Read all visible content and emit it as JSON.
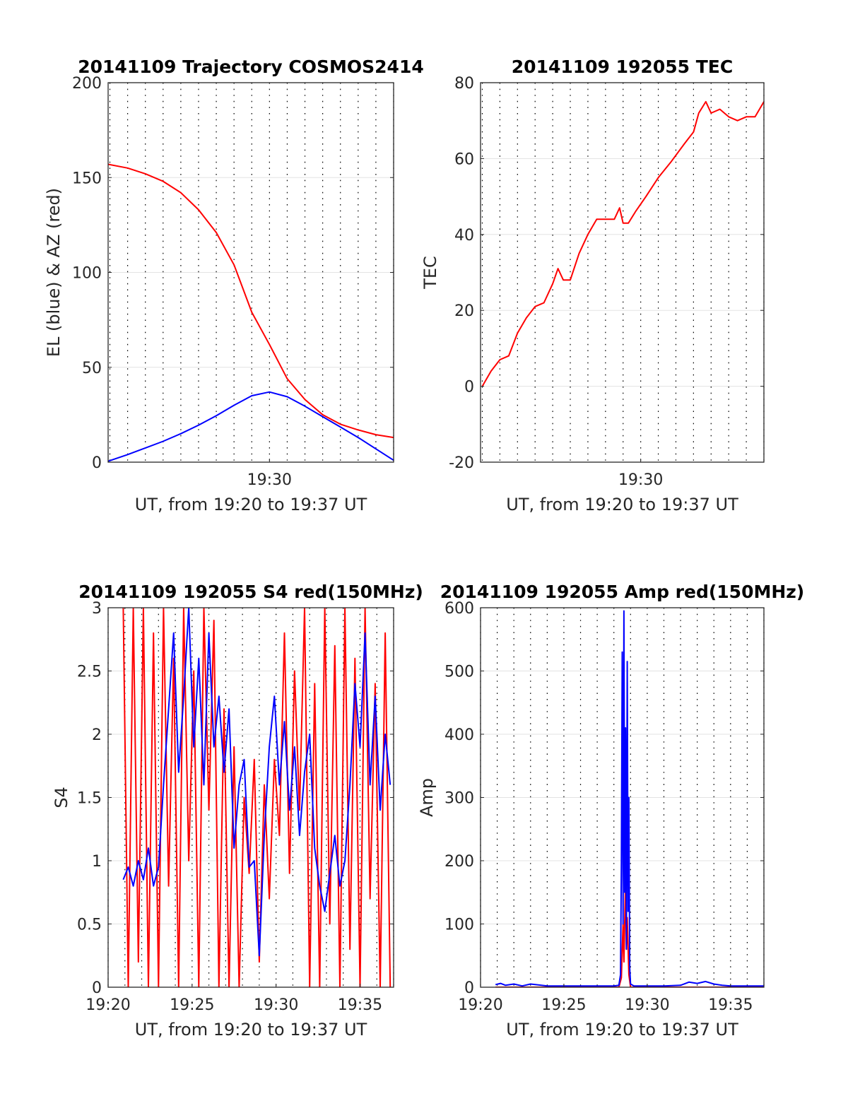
{
  "figure": {
    "date": "20141109",
    "satellite": "COSMOS2414"
  },
  "chart_data": [
    {
      "id": "traj",
      "type": "line",
      "title": "20141109 Trajectory COSMOS2414",
      "xlabel": "UT, from 19:20 to 19:37 UT",
      "ylabel": "EL (blue) & AZ (red)",
      "x_unit": "minutes after 19:20 UT",
      "xlim": [
        0.9,
        17.0
      ],
      "ylim": [
        0,
        200
      ],
      "xticks": [
        {
          "value": 10,
          "label": "19:30"
        }
      ],
      "yticks": [
        {
          "value": 0,
          "label": "0"
        },
        {
          "value": 50,
          "label": "50"
        },
        {
          "value": 100,
          "label": "100"
        },
        {
          "value": 150,
          "label": "150"
        },
        {
          "value": 200,
          "label": "200"
        }
      ],
      "grid": true,
      "minute_gridlines": true,
      "series": [
        {
          "color": "#ff0000",
          "x": [
            0.9,
            2,
            3,
            4,
            5,
            6,
            7,
            8,
            9,
            10,
            11,
            12,
            13,
            14,
            15,
            16,
            17
          ],
          "y": [
            157,
            155,
            152,
            148,
            142,
            133,
            121,
            104,
            79,
            62,
            44,
            33,
            25,
            20,
            17,
            14.5,
            13
          ]
        },
        {
          "color": "#0000ff",
          "x": [
            0.9,
            2,
            3,
            4,
            5,
            6,
            7,
            8,
            9,
            10,
            11,
            12,
            13,
            14,
            15,
            16,
            17
          ],
          "y": [
            0.5,
            4,
            7.5,
            11,
            15,
            19.5,
            24.5,
            30,
            35,
            37,
            34.5,
            29.5,
            24,
            18.5,
            13,
            7,
            1
          ]
        }
      ]
    },
    {
      "id": "tec",
      "type": "line",
      "title": "20141109 192055 TEC",
      "xlabel": "UT, from 19:20 to 19:37 UT",
      "ylabel": "TEC",
      "x_unit": "minutes after 19:20 UT",
      "xlim": [
        0.9,
        17.0
      ],
      "ylim": [
        -20,
        80
      ],
      "xticks": [
        {
          "value": 10,
          "label": "19:30"
        }
      ],
      "yticks": [
        {
          "value": -20,
          "label": "-20"
        },
        {
          "value": 0,
          "label": "0"
        },
        {
          "value": 20,
          "label": "20"
        },
        {
          "value": 40,
          "label": "40"
        },
        {
          "value": 60,
          "label": "60"
        },
        {
          "value": 80,
          "label": "80"
        }
      ],
      "grid": true,
      "minute_gridlines": true,
      "series": [
        {
          "color": "#ff0000",
          "x": [
            1.0,
            1.5,
            2.0,
            2.5,
            3.0,
            3.5,
            4.0,
            4.5,
            5.0,
            5.3,
            5.6,
            6.0,
            6.5,
            7.0,
            7.5,
            8.0,
            8.5,
            8.8,
            9.0,
            9.3,
            9.7,
            10.3,
            11.0,
            11.7,
            12.5,
            13.0,
            13.3,
            13.7,
            14.0,
            14.5,
            15.0,
            15.5,
            16.0,
            16.5,
            17.0
          ],
          "y": [
            0,
            4,
            7,
            8,
            14,
            18,
            21,
            22,
            27,
            31,
            28,
            28,
            35,
            40,
            44,
            44,
            44,
            47,
            43,
            43,
            46,
            50,
            55,
            59,
            64,
            67,
            72,
            75,
            72,
            73,
            71,
            70,
            71,
            71,
            75
          ]
        }
      ]
    },
    {
      "id": "s4",
      "type": "line",
      "title": "20141109 192055 S4 red(150MHz)",
      "xlabel": "UT, from 19:20 to 19:37 UT",
      "ylabel": "S4",
      "x_unit": "minutes after 19:20 UT",
      "xlim": [
        0.0,
        17.0
      ],
      "ylim": [
        0,
        3
      ],
      "xticks": [
        {
          "value": 0,
          "label": "19:20"
        },
        {
          "value": 5,
          "label": "19:25"
        },
        {
          "value": 10,
          "label": "19:30"
        },
        {
          "value": 15,
          "label": "19:35"
        }
      ],
      "yticks": [
        {
          "value": 0,
          "label": "0"
        },
        {
          "value": 0.5,
          "label": "0.5"
        },
        {
          "value": 1,
          "label": "1"
        },
        {
          "value": 1.5,
          "label": "1.5"
        },
        {
          "value": 2,
          "label": "2"
        },
        {
          "value": 2.5,
          "label": "2.5"
        },
        {
          "value": 3,
          "label": "3"
        }
      ],
      "grid": true,
      "minute_gridlines": true,
      "series": [
        {
          "color": "#ff0000",
          "x": [
            0.9,
            1.2,
            1.5,
            1.8,
            2.1,
            2.4,
            2.7,
            3.0,
            3.3,
            3.6,
            3.9,
            4.2,
            4.5,
            4.8,
            5.1,
            5.4,
            5.7,
            6.0,
            6.3,
            6.6,
            6.9,
            7.2,
            7.5,
            7.8,
            8.1,
            8.4,
            8.7,
            9.0,
            9.3,
            9.6,
            9.9,
            10.2,
            10.5,
            10.8,
            11.1,
            11.4,
            11.7,
            12.0,
            12.3,
            12.6,
            12.9,
            13.2,
            13.5,
            13.8,
            14.1,
            14.4,
            14.7,
            15.0,
            15.3,
            15.6,
            15.9,
            16.2,
            16.5,
            16.8
          ],
          "y": [
            3.0,
            0.0,
            3.0,
            0.2,
            3.0,
            0.0,
            2.8,
            0.0,
            3.0,
            0.8,
            2.6,
            0.0,
            3.0,
            1.0,
            2.5,
            0.0,
            3.0,
            1.4,
            2.9,
            0.0,
            2.2,
            0.0,
            1.9,
            0.0,
            1.5,
            0.9,
            1.8,
            0.2,
            1.6,
            0.7,
            1.8,
            1.2,
            2.8,
            0.9,
            2.5,
            1.4,
            3.0,
            0.0,
            2.4,
            0.0,
            3.0,
            0.5,
            2.7,
            0.0,
            3.0,
            0.3,
            2.6,
            0.0,
            3.0,
            0.7,
            2.4,
            0.0,
            2.8,
            0.0
          ]
        },
        {
          "color": "#0000ff",
          "x": [
            0.9,
            1.2,
            1.5,
            1.8,
            2.1,
            2.4,
            2.7,
            3.0,
            3.3,
            3.6,
            3.9,
            4.2,
            4.5,
            4.8,
            5.1,
            5.4,
            5.7,
            6.0,
            6.3,
            6.6,
            6.9,
            7.2,
            7.5,
            7.8,
            8.1,
            8.4,
            8.7,
            9.0,
            9.3,
            9.6,
            9.9,
            10.2,
            10.5,
            10.8,
            11.1,
            11.4,
            11.7,
            12.0,
            12.3,
            12.6,
            12.9,
            13.2,
            13.5,
            13.8,
            14.1,
            14.4,
            14.7,
            15.0,
            15.3,
            15.6,
            15.9,
            16.2,
            16.5,
            16.8
          ],
          "y": [
            0.85,
            0.95,
            0.8,
            1.0,
            0.85,
            1.1,
            0.8,
            0.95,
            1.6,
            2.2,
            2.8,
            1.7,
            2.3,
            3.0,
            1.9,
            2.6,
            1.6,
            2.8,
            1.9,
            2.3,
            1.7,
            2.2,
            1.1,
            1.6,
            1.8,
            0.95,
            1.0,
            0.25,
            1.2,
            1.9,
            2.3,
            1.6,
            2.1,
            1.4,
            1.9,
            1.2,
            1.7,
            2.0,
            1.1,
            0.8,
            0.6,
            0.9,
            1.2,
            0.8,
            1.0,
            1.6,
            2.4,
            1.9,
            2.8,
            1.6,
            2.3,
            1.4,
            2.0,
            1.6
          ]
        }
      ]
    },
    {
      "id": "amp",
      "type": "line",
      "title": "20141109 192055 Amp red(150MHz)",
      "xlabel": "UT, from 19:20 to 19:37 UT",
      "ylabel": "Amp",
      "x_unit": "minutes after 19:20 UT",
      "xlim": [
        0.0,
        17.0
      ],
      "ylim": [
        0,
        600
      ],
      "xticks": [
        {
          "value": 0,
          "label": "19:20"
        },
        {
          "value": 5,
          "label": "19:25"
        },
        {
          "value": 10,
          "label": "19:30"
        },
        {
          "value": 15,
          "label": "19:35"
        }
      ],
      "yticks": [
        {
          "value": 0,
          "label": "0"
        },
        {
          "value": 100,
          "label": "100"
        },
        {
          "value": 200,
          "label": "200"
        },
        {
          "value": 300,
          "label": "300"
        },
        {
          "value": 400,
          "label": "400"
        },
        {
          "value": 500,
          "label": "500"
        },
        {
          "value": 600,
          "label": "600"
        }
      ],
      "grid": true,
      "minute_gridlines": true,
      "series": [
        {
          "color": "#ff0000",
          "x": [
            0.9,
            8.3,
            8.45,
            8.5,
            8.55,
            8.6,
            8.7,
            8.75,
            8.8,
            8.9,
            9.0,
            17.0
          ],
          "y": [
            0,
            0,
            15,
            60,
            100,
            40,
            170,
            60,
            110,
            20,
            0,
            0
          ]
        },
        {
          "color": "#0000ff",
          "x": [
            0.9,
            1.2,
            1.5,
            2.0,
            2.5,
            3.0,
            4.0,
            5.0,
            6.0,
            7.0,
            8.0,
            8.3,
            8.4,
            8.45,
            8.5,
            8.55,
            8.6,
            8.65,
            8.7,
            8.75,
            8.8,
            8.85,
            8.9,
            8.95,
            9.0,
            9.2,
            10.0,
            11.0,
            12.0,
            12.5,
            13.0,
            13.5,
            14.0,
            14.5,
            15.0,
            16.0,
            17.0
          ],
          "y": [
            4,
            6,
            3,
            5,
            2,
            5,
            2,
            2,
            2,
            2,
            2,
            3,
            20,
            200,
            530,
            100,
            595,
            150,
            410,
            60,
            515,
            120,
            300,
            30,
            5,
            2,
            2,
            2,
            3,
            8,
            6,
            9,
            5,
            3,
            2,
            2,
            2
          ]
        }
      ]
    }
  ]
}
